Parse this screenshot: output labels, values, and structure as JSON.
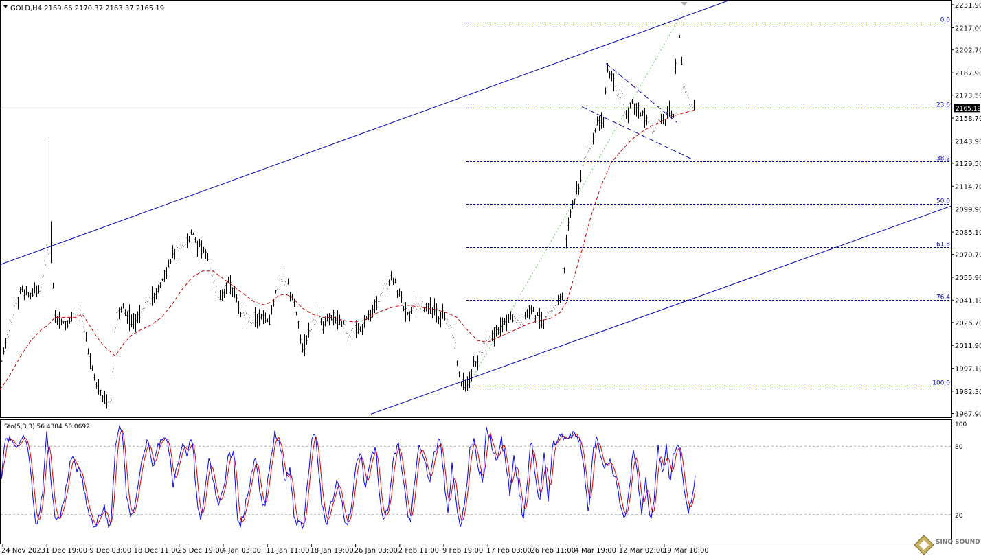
{
  "symbol_header": "GOLD,H4  2169.66 2170.37 2163.37 2165.19",
  "current_price": "2165.19",
  "colors": {
    "background": "#ffffff",
    "candles": "#000000",
    "moving_average": "#cc0000",
    "channel": "#0000aa",
    "fibonacci": "#000099",
    "stoch_main": "#0000ff",
    "stoch_signal": "#dd0000"
  },
  "chart_data": [
    {
      "type": "candlestick",
      "title": "GOLD,H4",
      "y_ticks": [
        "2231.90",
        "2217.00",
        "2202.70",
        "2187.90",
        "2173.50",
        "2158.70",
        "2143.90",
        "2129.50",
        "2114.70",
        "2099.90",
        "2085.10",
        "2070.70",
        "2055.90",
        "2041.10",
        "2026.70",
        "2011.90",
        "1997.10",
        "1982.30",
        "1967.90"
      ],
      "ylim": [
        1965.0,
        2234.5
      ],
      "x_ticks": [
        "24 Nov 2023",
        "1 Dec 19:00",
        "9 Dec 03:00",
        "18 Dec 11:00",
        "26 Dec 19:00",
        "4 Jan 03:00",
        "11 Jan 11:00",
        "18 Jan 19:00",
        "26 Jan 03:00",
        "2 Feb 11:00",
        "9 Feb 19:00",
        "17 Feb 03:00",
        "26 Feb 11:00",
        "4 Mar 19:00",
        "12 Mar 02:00",
        "19 Mar 10:00"
      ],
      "price_path": [
        [
          0,
          1995
        ],
        [
          8,
          2015
        ],
        [
          18,
          2030
        ],
        [
          30,
          2048
        ],
        [
          45,
          2045
        ],
        [
          60,
          2050
        ],
        [
          68,
          2075
        ],
        [
          74,
          2070
        ],
        [
          80,
          2030
        ],
        [
          92,
          2025
        ],
        [
          105,
          2030
        ],
        [
          118,
          2032
        ],
        [
          125,
          2015
        ],
        [
          135,
          1993
        ],
        [
          145,
          1983
        ],
        [
          155,
          1975
        ],
        [
          162,
          1978
        ],
        [
          168,
          2030
        ],
        [
          178,
          2038
        ],
        [
          190,
          2028
        ],
        [
          200,
          2030
        ],
        [
          212,
          2040
        ],
        [
          225,
          2045
        ],
        [
          238,
          2055
        ],
        [
          250,
          2070
        ],
        [
          262,
          2075
        ],
        [
          272,
          2080
        ],
        [
          280,
          2085
        ],
        [
          290,
          2075
        ],
        [
          300,
          2072
        ],
        [
          310,
          2055
        ],
        [
          320,
          2040
        ],
        [
          330,
          2050
        ],
        [
          340,
          2048
        ],
        [
          350,
          2030
        ],
        [
          365,
          2028
        ],
        [
          380,
          2030
        ],
        [
          392,
          2028
        ],
        [
          400,
          2045
        ],
        [
          410,
          2055
        ],
        [
          420,
          2050
        ],
        [
          430,
          2035
        ],
        [
          440,
          2010
        ],
        [
          450,
          2022
        ],
        [
          460,
          2030
        ],
        [
          470,
          2025
        ],
        [
          480,
          2030
        ],
        [
          490,
          2030
        ],
        [
          500,
          2025
        ],
        [
          510,
          2018
        ],
        [
          520,
          2022
        ],
        [
          530,
          2025
        ],
        [
          540,
          2035
        ],
        [
          550,
          2040
        ],
        [
          560,
          2050
        ],
        [
          570,
          2055
        ],
        [
          580,
          2048
        ],
        [
          590,
          2032
        ],
        [
          600,
          2035
        ],
        [
          612,
          2038
        ],
        [
          625,
          2035
        ],
        [
          638,
          2032
        ],
        [
          650,
          2028
        ],
        [
          660,
          2020
        ],
        [
          668,
          1990
        ],
        [
          675,
          1986
        ],
        [
          682,
          1988
        ],
        [
          690,
          2000
        ],
        [
          700,
          2008
        ],
        [
          712,
          2015
        ],
        [
          722,
          2020
        ],
        [
          735,
          2028
        ],
        [
          748,
          2030
        ],
        [
          760,
          2025
        ],
        [
          770,
          2035
        ],
        [
          780,
          2032
        ],
        [
          790,
          2030
        ],
        [
          800,
          2032
        ],
        [
          810,
          2040
        ],
        [
          818,
          2045
        ],
        [
          825,
          2085
        ],
        [
          832,
          2100
        ],
        [
          840,
          2115
        ],
        [
          848,
          2125
        ],
        [
          855,
          2135
        ],
        [
          862,
          2145
        ],
        [
          870,
          2155
        ],
        [
          878,
          2158
        ],
        [
          884,
          2192
        ],
        [
          890,
          2185
        ],
        [
          898,
          2178
        ],
        [
          905,
          2172
        ],
        [
          912,
          2160
        ],
        [
          920,
          2168
        ],
        [
          928,
          2165
        ],
        [
          935,
          2160
        ],
        [
          942,
          2158
        ],
        [
          950,
          2150
        ],
        [
          958,
          2155
        ],
        [
          965,
          2158
        ],
        [
          972,
          2160
        ],
        [
          980,
          2163
        ],
        [
          986,
          2222
        ],
        [
          990,
          2205
        ],
        [
          995,
          2180
        ],
        [
          1000,
          2172
        ],
        [
          1005,
          2165
        ],
        [
          1010,
          2168
        ],
        [
          1012,
          2165
        ]
      ],
      "moving_average_path": [
        [
          0,
          1983
        ],
        [
          15,
          1993
        ],
        [
          30,
          2005
        ],
        [
          45,
          2015
        ],
        [
          60,
          2022
        ],
        [
          70,
          2025
        ],
        [
          80,
          2030
        ],
        [
          95,
          2030
        ],
        [
          110,
          2030
        ],
        [
          120,
          2032
        ],
        [
          130,
          2025
        ],
        [
          140,
          2018
        ],
        [
          150,
          2012
        ],
        [
          160,
          2008
        ],
        [
          168,
          2005
        ],
        [
          180,
          2013
        ],
        [
          190,
          2018
        ],
        [
          205,
          2022
        ],
        [
          220,
          2025
        ],
        [
          235,
          2030
        ],
        [
          250,
          2038
        ],
        [
          265,
          2048
        ],
        [
          280,
          2056
        ],
        [
          295,
          2060
        ],
        [
          310,
          2060
        ],
        [
          325,
          2055
        ],
        [
          340,
          2050
        ],
        [
          355,
          2045
        ],
        [
          370,
          2040
        ],
        [
          385,
          2038
        ],
        [
          395,
          2040
        ],
        [
          405,
          2044
        ],
        [
          415,
          2045
        ],
        [
          425,
          2043
        ],
        [
          440,
          2036
        ],
        [
          455,
          2032
        ],
        [
          470,
          2030
        ],
        [
          485,
          2030
        ],
        [
          500,
          2028
        ],
        [
          515,
          2027
        ],
        [
          530,
          2028
        ],
        [
          545,
          2032
        ],
        [
          560,
          2035
        ],
        [
          575,
          2037
        ],
        [
          590,
          2038
        ],
        [
          605,
          2037
        ],
        [
          620,
          2036
        ],
        [
          635,
          2035
        ],
        [
          650,
          2033
        ],
        [
          665,
          2030
        ],
        [
          680,
          2022
        ],
        [
          695,
          2015
        ],
        [
          710,
          2014
        ],
        [
          725,
          2017
        ],
        [
          740,
          2020
        ],
        [
          755,
          2023
        ],
        [
          770,
          2026
        ],
        [
          785,
          2028
        ],
        [
          800,
          2029
        ],
        [
          815,
          2033
        ],
        [
          825,
          2040
        ],
        [
          835,
          2055
        ],
        [
          848,
          2075
        ],
        [
          860,
          2095
        ],
        [
          875,
          2115
        ],
        [
          890,
          2130
        ],
        [
          905,
          2138
        ],
        [
          920,
          2145
        ],
        [
          935,
          2150
        ],
        [
          950,
          2154
        ],
        [
          965,
          2157
        ],
        [
          980,
          2160
        ],
        [
          995,
          2162
        ],
        [
          1012,
          2164
        ]
      ],
      "channel_upper": [
        [
          0,
          2064
        ],
        [
          1060,
          2234.5
        ]
      ],
      "channel_lower": [
        [
          540,
          1967.5
        ],
        [
          1385,
          2102
        ]
      ],
      "triangle_upper": [
        [
          882,
          2194
        ],
        [
          985,
          2156
        ]
      ],
      "triangle_lower": [
        [
          847,
          2166
        ],
        [
          1008,
          2132
        ]
      ],
      "fib_path": [
        [
          680,
          1985
        ],
        [
          986,
          2221
        ]
      ],
      "fibonacci": [
        {
          "label": "0.0",
          "value": 2220.5
        },
        {
          "label": "23.6",
          "value": 2165.2
        },
        {
          "label": "38.2",
          "value": 2130.9
        },
        {
          "label": "50.0",
          "value": 2103.1
        },
        {
          "label": "61.8",
          "value": 2075.4
        },
        {
          "label": "76.4",
          "value": 2041.1
        },
        {
          "label": "100.0",
          "value": 1985.7
        }
      ]
    },
    {
      "type": "line",
      "title": "Sto(5,3,3) 56.4384 50.0692",
      "ylim": [
        0,
        100
      ],
      "levels": [
        20,
        80
      ],
      "level_labels": [
        "100",
        "80",
        "20"
      ],
      "main_path": [
        [
          0,
          40
        ],
        [
          8,
          90
        ],
        [
          15,
          85
        ],
        [
          25,
          80
        ],
        [
          35,
          88
        ],
        [
          42,
          75
        ],
        [
          50,
          20
        ],
        [
          55,
          10
        ],
        [
          62,
          40
        ],
        [
          68,
          90
        ],
        [
          73,
          60
        ],
        [
          80,
          15
        ],
        [
          88,
          18
        ],
        [
          95,
          40
        ],
        [
          100,
          60
        ],
        [
          107,
          70
        ],
        [
          112,
          60
        ],
        [
          118,
          55
        ],
        [
          125,
          35
        ],
        [
          132,
          15
        ],
        [
          138,
          8
        ],
        [
          145,
          20
        ],
        [
          152,
          25
        ],
        [
          158,
          10
        ],
        [
          162,
          18
        ],
        [
          168,
          80
        ],
        [
          173,
          95
        ],
        [
          178,
          90
        ],
        [
          184,
          40
        ],
        [
          190,
          15
        ],
        [
          196,
          30
        ],
        [
          202,
          50
        ],
        [
          210,
          75
        ],
        [
          215,
          85
        ],
        [
          222,
          60
        ],
        [
          230,
          80
        ],
        [
          238,
          85
        ],
        [
          245,
          80
        ],
        [
          252,
          45
        ],
        [
          258,
          65
        ],
        [
          265,
          80
        ],
        [
          272,
          75
        ],
        [
          280,
          85
        ],
        [
          287,
          30
        ],
        [
          292,
          15
        ],
        [
          298,
          40
        ],
        [
          305,
          75
        ],
        [
          310,
          50
        ],
        [
          318,
          30
        ],
        [
          325,
          40
        ],
        [
          332,
          70
        ],
        [
          340,
          75
        ],
        [
          345,
          20
        ],
        [
          350,
          10
        ],
        [
          358,
          30
        ],
        [
          365,
          55
        ],
        [
          372,
          70
        ],
        [
          378,
          40
        ],
        [
          385,
          25
        ],
        [
          392,
          60
        ],
        [
          400,
          90
        ],
        [
          408,
          80
        ],
        [
          415,
          50
        ],
        [
          422,
          60
        ],
        [
          428,
          20
        ],
        [
          435,
          10
        ],
        [
          442,
          10
        ],
        [
          448,
          50
        ],
        [
          455,
          95
        ],
        [
          460,
          85
        ],
        [
          468,
          30
        ],
        [
          475,
          10
        ],
        [
          482,
          30
        ],
        [
          490,
          50
        ],
        [
          497,
          35
        ],
        [
          503,
          10
        ],
        [
          510,
          20
        ],
        [
          518,
          60
        ],
        [
          525,
          80
        ],
        [
          532,
          40
        ],
        [
          540,
          70
        ],
        [
          547,
          80
        ],
        [
          553,
          30
        ],
        [
          560,
          15
        ],
        [
          566,
          30
        ],
        [
          573,
          75
        ],
        [
          580,
          80
        ],
        [
          586,
          55
        ],
        [
          593,
          20
        ],
        [
          598,
          15
        ],
        [
          605,
          60
        ],
        [
          610,
          85
        ],
        [
          618,
          70
        ],
        [
          625,
          45
        ],
        [
          632,
          75
        ],
        [
          640,
          85
        ],
        [
          645,
          60
        ],
        [
          652,
          20
        ],
        [
          658,
          65
        ],
        [
          665,
          25
        ],
        [
          670,
          10
        ],
        [
          677,
          30
        ],
        [
          684,
          80
        ],
        [
          690,
          85
        ],
        [
          697,
          60
        ],
        [
          703,
          50
        ],
        [
          708,
          95
        ],
        [
          715,
          85
        ],
        [
          722,
          65
        ],
        [
          730,
          85
        ],
        [
          737,
          65
        ],
        [
          742,
          40
        ],
        [
          748,
          70
        ],
        [
          755,
          45
        ],
        [
          762,
          15
        ],
        [
          768,
          50
        ],
        [
          773,
          85
        ],
        [
          778,
          60
        ],
        [
          785,
          30
        ],
        [
          792,
          75
        ],
        [
          798,
          30
        ],
        [
          804,
          80
        ],
        [
          810,
          85
        ],
        [
          818,
          90
        ],
        [
          825,
          88
        ],
        [
          832,
          90
        ],
        [
          840,
          90
        ],
        [
          846,
          80
        ],
        [
          852,
          50
        ],
        [
          857,
          20
        ],
        [
          862,
          70
        ],
        [
          868,
          88
        ],
        [
          874,
          75
        ],
        [
          880,
          60
        ],
        [
          888,
          65
        ],
        [
          895,
          55
        ],
        [
          900,
          40
        ],
        [
          905,
          25
        ],
        [
          910,
          15
        ],
        [
          916,
          40
        ],
        [
          922,
          80
        ],
        [
          928,
          55
        ],
        [
          934,
          20
        ],
        [
          940,
          50
        ],
        [
          946,
          15
        ],
        [
          952,
          30
        ],
        [
          958,
          80
        ],
        [
          964,
          55
        ],
        [
          970,
          80
        ],
        [
          975,
          45
        ],
        [
          980,
          70
        ],
        [
          985,
          82
        ],
        [
          990,
          75
        ],
        [
          997,
          35
        ],
        [
          1002,
          20
        ],
        [
          1007,
          35
        ],
        [
          1012,
          55
        ]
      ],
      "signal_smoothing": 3
    }
  ]
}
